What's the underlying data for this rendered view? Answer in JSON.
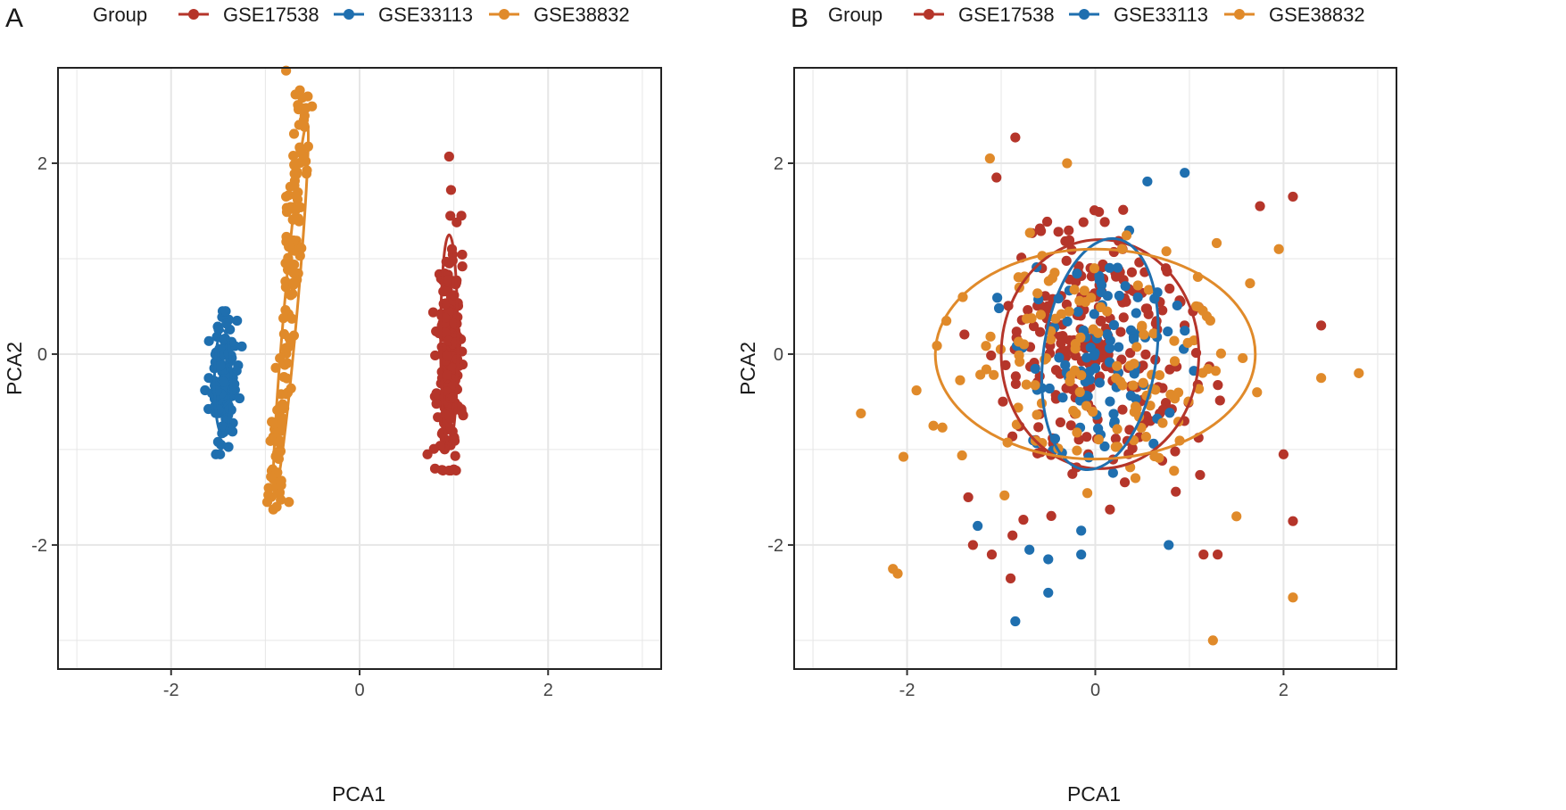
{
  "colors": {
    "GSE17538": "#B5352A",
    "GSE33113": "#1F6FAF",
    "GSE38832": "#E08A2A"
  },
  "chart_data": [
    {
      "type": "scatter",
      "panel_label": "A",
      "legend_title": "Group",
      "legend": [
        "GSE17538",
        "GSE33113",
        "GSE38832"
      ],
      "xlabel": "PCA1",
      "ylabel": "PCA2",
      "xlim": [
        -3.2,
        3.2
      ],
      "ylim": [
        -3.3,
        3.0
      ],
      "xticks": [
        -2,
        0,
        2
      ],
      "yticks": [
        -2,
        0,
        2
      ],
      "xtick_labels": [
        "-2",
        "0",
        "2"
      ],
      "ytick_labels": [
        "-2",
        "0",
        "2"
      ],
      "grid": true,
      "legend_position": "top",
      "series": [
        {
          "name": "GSE17538",
          "n": 240,
          "center": [
            0.95,
            -0.05
          ],
          "spread": [
            0.06,
            0.55
          ],
          "ymin": -1.22,
          "ymax": 2.07,
          "seed": 11,
          "extremes": [
            [
              0.95,
              2.07
            ],
            [
              0.97,
              1.72
            ],
            [
              1.08,
              1.45
            ],
            [
              1.03,
              1.38
            ],
            [
              0.98,
              1.1
            ],
            [
              0.72,
              -1.05
            ],
            [
              0.8,
              -1.2
            ],
            [
              0.95,
              -1.22
            ]
          ]
        },
        {
          "name": "GSE33113",
          "n": 100,
          "center": [
            -1.45,
            -0.3
          ],
          "spread": [
            0.07,
            0.3
          ],
          "ymin": -1.05,
          "ymax": 0.45,
          "seed": 23,
          "extremes": [
            [
              -1.42,
              0.45
            ],
            [
              -1.3,
              0.35
            ],
            [
              -1.25,
              0.08
            ],
            [
              -1.6,
              -0.25
            ],
            [
              -1.48,
              -1.05
            ],
            [
              -1.47,
              -0.95
            ]
          ]
        },
        {
          "name": "GSE38832",
          "n": 140,
          "lines": [
            [
              -0.92,
              -1.55
            ],
            [
              -0.6,
              2.7
            ]
          ],
          "seed": 37,
          "extremes": [
            [
              -0.78,
              2.97
            ],
            [
              -0.68,
              2.72
            ],
            [
              -0.55,
              2.7
            ],
            [
              -0.88,
              -1.6
            ],
            [
              -0.98,
              -1.55
            ],
            [
              -0.75,
              -1.55
            ],
            [
              -0.78,
              1.65
            ],
            [
              -0.7,
              0.75
            ]
          ]
        }
      ],
      "ellipses": [
        {
          "name": "GSE17538",
          "center": [
            0.95,
            0.15
          ],
          "rx": 0.09,
          "ry": 1.1,
          "angle_deg": 0
        },
        {
          "name": "GSE33113",
          "center": [
            -1.45,
            -0.3
          ],
          "rx": 0.09,
          "ry": 0.55,
          "angle_deg": 0
        },
        {
          "name": "GSE38832",
          "center": [
            -0.73,
            0.48
          ],
          "rx": 0.07,
          "ry": 1.95,
          "angle_deg": 5
        }
      ]
    },
    {
      "type": "scatter",
      "panel_label": "B",
      "legend_title": "Group",
      "legend": [
        "GSE17538",
        "GSE33113",
        "GSE38832"
      ],
      "xlabel": "PCA1",
      "ylabel": "PCA2",
      "xlim": [
        -3.2,
        3.2
      ],
      "ylim": [
        -3.3,
        3.0
      ],
      "xticks": [
        -2,
        0,
        2
      ],
      "yticks": [
        -2,
        0,
        2
      ],
      "xtick_labels": [
        "-2",
        "0",
        "2"
      ],
      "ytick_labels": [
        "-2",
        "0",
        "2"
      ],
      "grid": true,
      "legend_position": "top",
      "series": [
        {
          "name": "GSE17538",
          "n": 240,
          "center": [
            0.0,
            0.0
          ],
          "spread": [
            0.55,
            0.7
          ],
          "seed": 51,
          "extremes": [
            [
              -0.85,
              2.27
            ],
            [
              -1.05,
              1.85
            ],
            [
              2.1,
              1.65
            ],
            [
              1.75,
              1.55
            ],
            [
              2.4,
              0.3
            ],
            [
              2.1,
              -1.75
            ],
            [
              1.3,
              -2.1
            ],
            [
              1.15,
              -2.1
            ],
            [
              -0.9,
              -2.35
            ],
            [
              -1.1,
              -2.1
            ],
            [
              -0.88,
              -1.9
            ],
            [
              -1.3,
              -2.0
            ],
            [
              -1.35,
              -1.5
            ],
            [
              2.0,
              -1.05
            ]
          ]
        },
        {
          "name": "GSE33113",
          "n": 100,
          "center": [
            0.0,
            0.0
          ],
          "spread": [
            0.4,
            0.6
          ],
          "seed": 63,
          "extremes": [
            [
              0.95,
              1.9
            ],
            [
              -0.85,
              -2.8
            ],
            [
              -0.5,
              -2.5
            ],
            [
              -0.5,
              -2.15
            ],
            [
              -0.7,
              -2.05
            ],
            [
              0.78,
              -2.0
            ],
            [
              -0.15,
              -2.1
            ],
            [
              -0.15,
              -1.85
            ],
            [
              -1.25,
              -1.8
            ]
          ]
        },
        {
          "name": "GSE38832",
          "n": 140,
          "center": [
            0.0,
            0.0
          ],
          "spread": [
            0.8,
            0.6
          ],
          "seed": 79,
          "extremes": [
            [
              -1.12,
              2.05
            ],
            [
              -0.3,
              2.0
            ],
            [
              2.8,
              -0.2
            ],
            [
              1.25,
              -3.0
            ],
            [
              2.1,
              -2.55
            ],
            [
              -2.15,
              -2.25
            ],
            [
              -2.1,
              -2.3
            ],
            [
              -1.9,
              -0.38
            ],
            [
              -1.72,
              -0.75
            ],
            [
              2.4,
              -0.25
            ],
            [
              1.5,
              -1.7
            ],
            [
              1.95,
              1.1
            ]
          ]
        }
      ],
      "ellipses": [
        {
          "name": "GSE17538",
          "center": [
            0.05,
            0.0
          ],
          "rx": 1.05,
          "ry": 1.2,
          "angle_deg": 0
        },
        {
          "name": "GSE33113",
          "center": [
            0.05,
            0.0
          ],
          "rx": 0.6,
          "ry": 1.22,
          "angle_deg": 8
        },
        {
          "name": "GSE38832",
          "center": [
            0.0,
            0.0
          ],
          "rx": 1.7,
          "ry": 1.1,
          "angle_deg": 0
        }
      ]
    }
  ]
}
